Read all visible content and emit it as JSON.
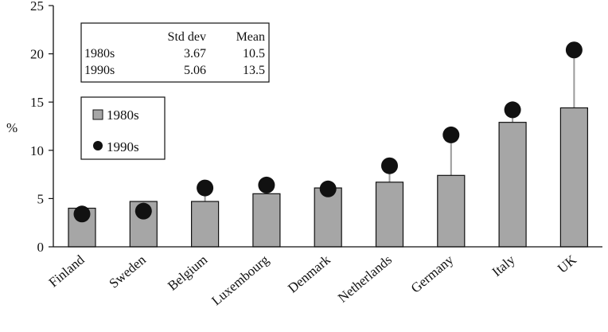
{
  "chart_data": {
    "type": "bar",
    "ylabel": "%",
    "ylim": [
      0,
      25
    ],
    "yticks": [
      "0",
      "5",
      "10",
      "15",
      "20",
      "25"
    ],
    "categories": [
      "Finland",
      "Sweden",
      "Belgium",
      "Luxembourg",
      "Denmark",
      "Netherlands",
      "Germany",
      "Italy",
      "UK"
    ],
    "series": [
      {
        "name": "1980s",
        "values": [
          4.0,
          4.7,
          4.7,
          5.5,
          6.1,
          6.7,
          7.4,
          12.9,
          14.4
        ],
        "mark": "bar",
        "color": "#a6a6a6"
      },
      {
        "name": "1990s",
        "values": [
          3.4,
          3.7,
          6.1,
          6.4,
          6.0,
          8.4,
          11.6,
          14.2,
          20.4
        ],
        "mark": "dot",
        "color": "#111111"
      }
    ],
    "stats_table": {
      "columns": [
        "",
        "Std dev",
        "Mean"
      ],
      "rows": [
        [
          "1980s",
          "3.67",
          "10.5"
        ],
        [
          "1990s",
          "5.06",
          "13.5"
        ]
      ]
    },
    "legend": [
      {
        "label": "1980s",
        "symbol": "square"
      },
      {
        "label": "1990s",
        "symbol": "circle"
      }
    ]
  }
}
